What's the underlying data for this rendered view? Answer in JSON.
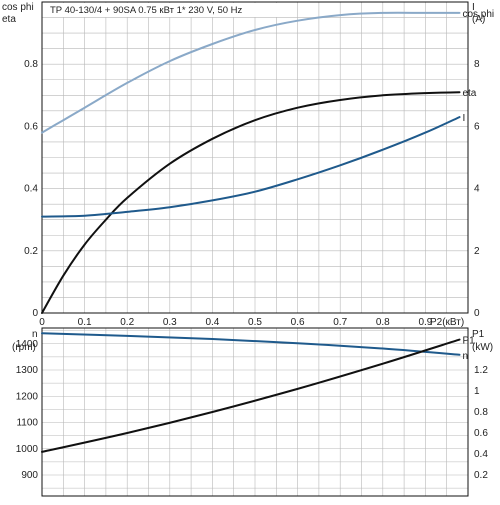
{
  "colors": {
    "cos_phi": "#8aa9c8",
    "eta": "#111111",
    "current": "#1f5a8c",
    "speed": "#1f5a8c",
    "p1": "#111111"
  },
  "chart_data": [
    {
      "type": "line",
      "title": "TP 40-130/4 + 90SA    0.75 кВт    1* 230 V, 50 Hz",
      "xlabel": "P2(кВт)",
      "ylabel_left": "cos phi\neta",
      "ylabel_right": "I\n(A)",
      "xlim": [
        0,
        1.0
      ],
      "ylim_left": [
        0,
        1.0
      ],
      "ylim_right": [
        0,
        10
      ],
      "x_ticks": [
        0,
        0.1,
        0.2,
        0.3,
        0.4,
        0.5,
        0.6,
        0.7,
        0.8,
        0.9
      ],
      "y_ticks_left": [
        0,
        0.2,
        0.4,
        0.6,
        0.8
      ],
      "y_ticks_right": [
        0,
        2,
        4,
        6,
        8
      ],
      "grid": true,
      "series": [
        {
          "name": "cos phi",
          "axis": "left",
          "color_key": "cos_phi",
          "x": [
            0,
            0.05,
            0.1,
            0.2,
            0.3,
            0.4,
            0.5,
            0.6,
            0.7,
            0.8,
            0.9,
            0.98
          ],
          "y": [
            0.58,
            0.62,
            0.66,
            0.74,
            0.81,
            0.865,
            0.91,
            0.94,
            0.958,
            0.965,
            0.965,
            0.965
          ]
        },
        {
          "name": "eta",
          "axis": "left",
          "color_key": "eta",
          "x": [
            0,
            0.05,
            0.1,
            0.15,
            0.2,
            0.3,
            0.4,
            0.5,
            0.6,
            0.7,
            0.8,
            0.9,
            0.98
          ],
          "y": [
            0,
            0.12,
            0.22,
            0.3,
            0.37,
            0.48,
            0.56,
            0.62,
            0.66,
            0.685,
            0.7,
            0.707,
            0.71
          ]
        },
        {
          "name": "I",
          "axis": "right",
          "color_key": "current",
          "x": [
            0,
            0.1,
            0.2,
            0.3,
            0.4,
            0.5,
            0.6,
            0.7,
            0.8,
            0.9,
            0.98
          ],
          "y": [
            3.1,
            3.13,
            3.25,
            3.4,
            3.62,
            3.9,
            4.3,
            4.75,
            5.25,
            5.8,
            6.3
          ]
        }
      ]
    },
    {
      "type": "line",
      "xlabel": "",
      "ylabel_left": "n\n(rpm)",
      "ylabel_right": "P1\n(kW)",
      "xlim": [
        0,
        1.0
      ],
      "ylim_left": [
        820,
        1460
      ],
      "ylim_right": [
        0,
        1.6
      ],
      "y_ticks_left": [
        900,
        1000,
        1100,
        1200,
        1300,
        1400
      ],
      "y_ticks_right": [
        0.2,
        0.4,
        0.6,
        0.8,
        1,
        1.2
      ],
      "grid": true,
      "series": [
        {
          "name": "n",
          "axis": "left",
          "color_key": "speed",
          "x": [
            0,
            0.2,
            0.4,
            0.6,
            0.8,
            0.98
          ],
          "y": [
            1440,
            1430,
            1418,
            1402,
            1382,
            1358
          ]
        },
        {
          "name": "P1",
          "axis": "right",
          "color_key": "p1",
          "x": [
            0,
            0.2,
            0.4,
            0.6,
            0.8,
            0.98
          ],
          "y": [
            0.42,
            0.6,
            0.8,
            1.02,
            1.26,
            1.49
          ]
        }
      ]
    }
  ]
}
